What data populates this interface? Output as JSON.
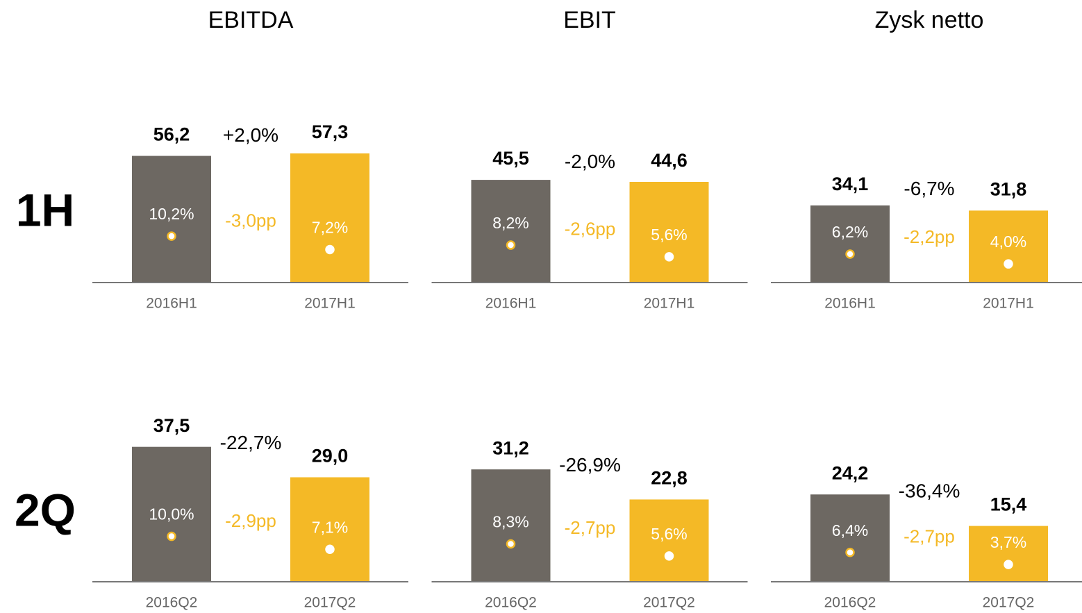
{
  "columns": [
    "EBITDA",
    "EBIT",
    "Zysk netto"
  ],
  "rows": [
    "1H",
    "2Q"
  ],
  "chart_data": [
    {
      "type": "bar",
      "categories": [
        "2016H1",
        "2017H1"
      ],
      "values": [
        56.2,
        57.3
      ],
      "value_labels": [
        "56,2",
        "57,3"
      ],
      "colors": [
        "#6d6862",
        "#f4b926"
      ],
      "change_label": "+2,0%",
      "margins": [
        10.2,
        7.2
      ],
      "margin_labels": [
        "10,2%",
        "7,2%"
      ],
      "margin_change_label": "-3,0pp",
      "ylim": [
        0,
        70
      ],
      "y2lim": [
        0,
        35
      ]
    },
    {
      "type": "bar",
      "categories": [
        "2016H1",
        "2017H1"
      ],
      "values": [
        45.5,
        44.6
      ],
      "value_labels": [
        "45,5",
        "44,6"
      ],
      "colors": [
        "#6d6862",
        "#f4b926"
      ],
      "change_label": "-2,0%",
      "margins": [
        8.2,
        5.6
      ],
      "margin_labels": [
        "8,2%",
        "5,6%"
      ],
      "margin_change_label": "-2,6pp",
      "ylim": [
        0,
        70
      ],
      "y2lim": [
        0,
        35
      ]
    },
    {
      "type": "bar",
      "categories": [
        "2016H1",
        "2017H1"
      ],
      "values": [
        34.1,
        31.8
      ],
      "value_labels": [
        "34,1",
        "31,8"
      ],
      "colors": [
        "#6d6862",
        "#f4b926"
      ],
      "change_label": "-6,7%",
      "margins": [
        6.2,
        4.0
      ],
      "margin_labels": [
        "6,2%",
        "4,0%"
      ],
      "margin_change_label": "-2,2pp",
      "ylim": [
        0,
        70
      ],
      "y2lim": [
        0,
        35
      ]
    },
    {
      "type": "bar",
      "categories": [
        "2016Q2",
        "2017Q2"
      ],
      "values": [
        37.5,
        29.0
      ],
      "value_labels": [
        "37,5",
        "29,0"
      ],
      "colors": [
        "#6d6862",
        "#f4b926"
      ],
      "change_label": "-22,7%",
      "margins": [
        10.0,
        7.1
      ],
      "margin_labels": [
        "10,0%",
        "7,1%"
      ],
      "margin_change_label": "-2,9pp",
      "ylim": [
        0,
        45
      ],
      "y2lim": [
        0,
        36
      ]
    },
    {
      "type": "bar",
      "categories": [
        "2016Q2",
        "2017Q2"
      ],
      "values": [
        31.2,
        22.8
      ],
      "value_labels": [
        "31,2",
        "22,8"
      ],
      "colors": [
        "#6d6862",
        "#f4b926"
      ],
      "change_label": "-26,9%",
      "margins": [
        8.3,
        5.6
      ],
      "margin_labels": [
        "8,3%",
        "5,6%"
      ],
      "margin_change_label": "-2,7pp",
      "ylim": [
        0,
        45
      ],
      "y2lim": [
        0,
        36
      ]
    },
    {
      "type": "bar",
      "categories": [
        "2016Q2",
        "2017Q2"
      ],
      "values": [
        24.2,
        15.4
      ],
      "value_labels": [
        "24,2",
        "15,4"
      ],
      "colors": [
        "#6d6862",
        "#f4b926"
      ],
      "change_label": "-36,4%",
      "margins": [
        6.4,
        3.7
      ],
      "margin_labels": [
        "6,4%",
        "3,7%"
      ],
      "margin_change_label": "-2,7pp",
      "ylim": [
        0,
        45
      ],
      "y2lim": [
        0,
        36
      ]
    }
  ]
}
